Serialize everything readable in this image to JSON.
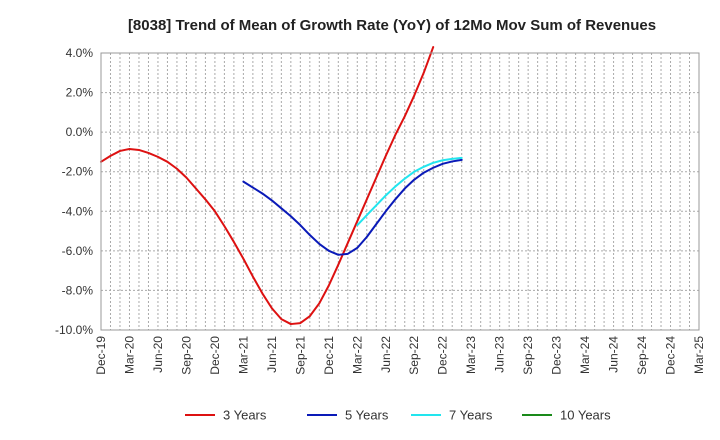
{
  "chart_data": {
    "type": "line",
    "title": "[8038]  Trend of Mean of Growth Rate (YoY) of 12Mo Mov Sum of Revenues",
    "xlabel": "",
    "ylabel": "",
    "ylim": [
      -10,
      4
    ],
    "y_ticks": [
      4,
      2,
      0,
      -2,
      -4,
      -6,
      -8,
      -10
    ],
    "y_tick_labels": [
      "4.0%",
      "2.0%",
      "0.0%",
      "-2.0%",
      "-4.0%",
      "-6.0%",
      "-8.0%",
      "-10.0%"
    ],
    "x_ticks": [
      "Dec-19",
      "Mar-20",
      "Jun-20",
      "Sep-20",
      "Dec-20",
      "Mar-21",
      "Jun-21",
      "Sep-21",
      "Dec-21",
      "Mar-22",
      "Jun-22",
      "Sep-22",
      "Dec-22",
      "Mar-23",
      "Jun-23",
      "Sep-23",
      "Dec-23",
      "Mar-24",
      "Jun-24",
      "Sep-24",
      "Dec-24",
      "Mar-25"
    ],
    "grid": true,
    "legend_position": "bottom",
    "series": [
      {
        "name": "3 Years",
        "color": "#dd1111",
        "start_index": 0,
        "values": [
          -1.5,
          -1.2,
          -0.95,
          -0.85,
          -0.9,
          -1.05,
          -1.25,
          -1.5,
          -1.85,
          -2.3,
          -2.85,
          -3.4,
          -4.0,
          -4.75,
          -5.55,
          -6.4,
          -7.3,
          -8.15,
          -8.9,
          -9.45,
          -9.7,
          -9.65,
          -9.3,
          -8.65,
          -7.75,
          -6.7,
          -5.6,
          -4.5,
          -3.4,
          -2.3,
          -1.2,
          -0.15,
          0.8,
          1.85,
          3.0,
          4.3
        ]
      },
      {
        "name": "5 Years",
        "color": "#0a1ab8",
        "start_index": 15,
        "values": [
          -2.5,
          -2.8,
          -3.1,
          -3.45,
          -3.85,
          -4.25,
          -4.7,
          -5.2,
          -5.65,
          -6.0,
          -6.2,
          -6.15,
          -5.85,
          -5.3,
          -4.65,
          -4.0,
          -3.4,
          -2.85,
          -2.4,
          -2.05,
          -1.8,
          -1.6,
          -1.48,
          -1.4
        ]
      },
      {
        "name": "7 Years",
        "color": "#22e5ee",
        "start_index": 27,
        "values": [
          -4.7,
          -4.2,
          -3.7,
          -3.2,
          -2.75,
          -2.35,
          -2.0,
          -1.75,
          -1.55,
          -1.42,
          -1.35,
          -1.3
        ]
      },
      {
        "name": "10 Years",
        "color": "#1a8a1a",
        "start_index": 0,
        "values": []
      }
    ]
  }
}
